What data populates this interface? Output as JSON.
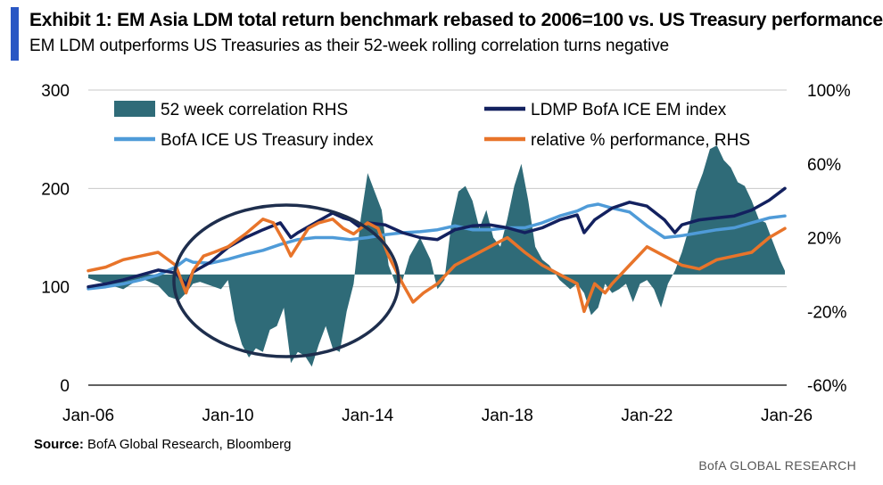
{
  "header": {
    "title": "Exhibit 1: EM Asia LDM total return benchmark rebased to 2006=100 vs. US Treasury performance",
    "subtitle": "EM LDM outperforms US Treasuries as their 52-week rolling correlation turns negative"
  },
  "footer": {
    "source_label": "Source:",
    "source_text": " BofA Global Research, Bloomberg",
    "brand": "BofA GLOBAL RESEARCH"
  },
  "colors": {
    "accent": "#2a57c4",
    "correlation": "#2f6b78",
    "ldmp": "#13215f",
    "treasury": "#4f9bd8",
    "relative": "#e8742a",
    "grid": "#c8c8c8",
    "ellipse": "#1e2e4d"
  },
  "chart_data": {
    "type": "line",
    "x_ticks": [
      "Jan-06",
      "Jan-10",
      "Jan-14",
      "Jan-18",
      "Jan-22",
      "Jan-26"
    ],
    "xlim": [
      2006,
      2026
    ],
    "y_left": {
      "ticks": [
        "300",
        "200",
        "100",
        "0"
      ],
      "lim": [
        0,
        300
      ]
    },
    "y_right": {
      "ticks": [
        "100%",
        "60%",
        "20%",
        "-20%",
        "-60%"
      ],
      "lim": [
        -60,
        100
      ]
    },
    "legend": [
      "52 week correlation RHS",
      "LDMP BofA ICE EM index",
      "BofA ICE US Treasury index",
      "relative % performance, RHS"
    ],
    "annotation": "ellipse around 2008-2014 negative correlation period",
    "series": [
      {
        "name": "52 week correlation RHS",
        "kind": "area",
        "axis": "right",
        "x": [
          2006.0,
          2006.5,
          2007.0,
          2007.5,
          2008.0,
          2008.3,
          2008.6,
          2008.8,
          2009.0,
          2009.2,
          2009.5,
          2009.8,
          2010.0,
          2010.2,
          2010.4,
          2010.6,
          2010.8,
          2011.0,
          2011.2,
          2011.4,
          2011.6,
          2011.8,
          2012.0,
          2012.2,
          2012.4,
          2012.6,
          2012.8,
          2013.0,
          2013.2,
          2013.4,
          2013.6,
          2013.8,
          2014.0,
          2014.2,
          2014.4,
          2014.6,
          2014.8,
          2015.0,
          2015.2,
          2015.5,
          2015.8,
          2016.0,
          2016.2,
          2016.4,
          2016.6,
          2016.8,
          2017.0,
          2017.2,
          2017.4,
          2017.6,
          2017.8,
          2018.0,
          2018.2,
          2018.4,
          2018.6,
          2018.8,
          2019.0,
          2019.2,
          2019.5,
          2019.8,
          2020.0,
          2020.2,
          2020.4,
          2020.6,
          2020.8,
          2021.0,
          2021.2,
          2021.4,
          2021.6,
          2021.8,
          2022.0,
          2022.2,
          2022.4,
          2022.6,
          2022.8,
          2023.0,
          2023.2,
          2023.4,
          2023.6,
          2023.8,
          2024.0,
          2024.2,
          2024.4,
          2024.6,
          2024.8,
          2025.0,
          2025.2,
          2025.4,
          2025.6,
          2025.8,
          2025.95
        ],
        "y": [
          -2,
          -5,
          -8,
          -2,
          -6,
          -12,
          -14,
          -10,
          -5,
          -4,
          -6,
          -8,
          -3,
          -25,
          -38,
          -45,
          -40,
          -42,
          -30,
          -28,
          -18,
          -48,
          -42,
          -44,
          -50,
          -38,
          -28,
          -40,
          -42,
          -20,
          -5,
          30,
          55,
          45,
          35,
          5,
          -5,
          -3,
          10,
          20,
          8,
          -8,
          -3,
          28,
          45,
          48,
          40,
          25,
          35,
          20,
          15,
          30,
          48,
          60,
          40,
          15,
          8,
          5,
          -3,
          -8,
          -5,
          -10,
          -22,
          -18,
          -5,
          -10,
          -8,
          -5,
          -15,
          -5,
          -3,
          -8,
          -18,
          -5,
          2,
          12,
          25,
          45,
          55,
          68,
          70,
          62,
          58,
          50,
          48,
          40,
          30,
          28,
          18,
          8,
          2
        ]
      },
      {
        "name": "LDMP BofA ICE EM index",
        "kind": "line",
        "axis": "left",
        "x": [
          2006.0,
          2006.5,
          2007.0,
          2007.5,
          2008.0,
          2008.5,
          2008.8,
          2009.0,
          2009.5,
          2010.0,
          2010.5,
          2011.0,
          2011.5,
          2011.8,
          2012.0,
          2012.5,
          2013.0,
          2013.3,
          2013.5,
          2013.8,
          2014.0,
          2014.5,
          2015.0,
          2015.5,
          2016.0,
          2016.5,
          2017.0,
          2017.5,
          2018.0,
          2018.5,
          2019.0,
          2019.5,
          2020.0,
          2020.2,
          2020.5,
          2021.0,
          2021.5,
          2022.0,
          2022.5,
          2022.8,
          2023.0,
          2023.5,
          2024.0,
          2024.5,
          2025.0,
          2025.5,
          2025.95
        ],
        "y": [
          100,
          103,
          107,
          112,
          117,
          114,
          102,
          115,
          125,
          140,
          150,
          158,
          165,
          150,
          155,
          165,
          175,
          170,
          168,
          160,
          165,
          163,
          155,
          150,
          148,
          158,
          162,
          163,
          160,
          155,
          160,
          168,
          173,
          155,
          168,
          180,
          186,
          182,
          168,
          155,
          163,
          168,
          170,
          172,
          178,
          188,
          200
        ]
      },
      {
        "name": "BofA ICE US Treasury index",
        "kind": "line",
        "axis": "left",
        "x": [
          2006.0,
          2006.5,
          2007.0,
          2007.5,
          2008.0,
          2008.5,
          2008.8,
          2009.0,
          2009.5,
          2010.0,
          2010.5,
          2011.0,
          2011.5,
          2012.0,
          2012.5,
          2013.0,
          2013.5,
          2014.0,
          2014.5,
          2015.0,
          2015.5,
          2016.0,
          2016.5,
          2017.0,
          2017.5,
          2018.0,
          2018.5,
          2019.0,
          2019.5,
          2020.0,
          2020.3,
          2020.6,
          2021.0,
          2021.5,
          2022.0,
          2022.5,
          2023.0,
          2023.5,
          2024.0,
          2024.5,
          2025.0,
          2025.5,
          2025.95
        ],
        "y": [
          98,
          100,
          103,
          107,
          112,
          120,
          128,
          125,
          124,
          128,
          133,
          137,
          143,
          148,
          150,
          150,
          148,
          150,
          153,
          155,
          156,
          158,
          162,
          158,
          158,
          160,
          160,
          165,
          172,
          177,
          182,
          184,
          180,
          176,
          162,
          150,
          152,
          155,
          158,
          160,
          165,
          170,
          172
        ]
      },
      {
        "name": "relative % performance, RHS",
        "kind": "line",
        "axis": "right",
        "x": [
          2006.0,
          2006.5,
          2007.0,
          2007.5,
          2008.0,
          2008.5,
          2008.8,
          2009.0,
          2009.3,
          2009.6,
          2010.0,
          2010.5,
          2011.0,
          2011.3,
          2011.6,
          2011.8,
          2012.0,
          2012.3,
          2012.6,
          2013.0,
          2013.3,
          2013.6,
          2014.0,
          2014.3,
          2014.6,
          2015.0,
          2015.3,
          2015.6,
          2016.0,
          2016.5,
          2017.0,
          2017.5,
          2018.0,
          2018.5,
          2019.0,
          2019.5,
          2020.0,
          2020.2,
          2020.5,
          2020.8,
          2021.0,
          2021.5,
          2022.0,
          2022.5,
          2023.0,
          2023.5,
          2024.0,
          2024.5,
          2025.0,
          2025.5,
          2025.95
        ],
        "y": [
          2,
          4,
          8,
          10,
          12,
          5,
          -10,
          2,
          10,
          12,
          15,
          22,
          30,
          28,
          18,
          10,
          16,
          25,
          28,
          30,
          25,
          22,
          28,
          25,
          10,
          -5,
          -15,
          -10,
          -5,
          5,
          10,
          15,
          20,
          12,
          5,
          0,
          -5,
          -20,
          -5,
          -10,
          -5,
          5,
          15,
          10,
          5,
          3,
          8,
          10,
          12,
          20,
          25
        ]
      }
    ]
  }
}
